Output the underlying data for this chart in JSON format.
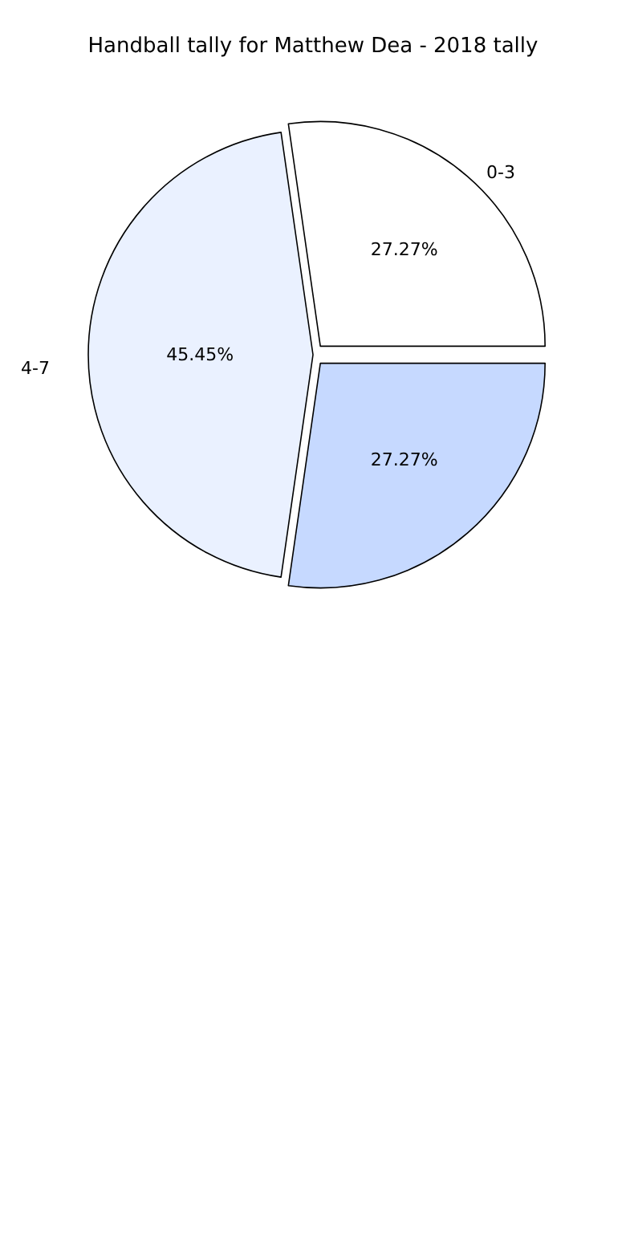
{
  "chart_data": {
    "type": "pie",
    "title": "Handball tally for Matthew Dea - 2018 tally",
    "categories": [
      "0-3",
      "4-7",
      null
    ],
    "values": [
      27.27,
      45.45,
      27.27
    ],
    "value_labels": [
      "27.27%",
      "45.45%",
      "27.27%"
    ],
    "colors": [
      "#ffffff",
      "#eaf1ff",
      "#c6d9ff"
    ],
    "legend": false
  }
}
